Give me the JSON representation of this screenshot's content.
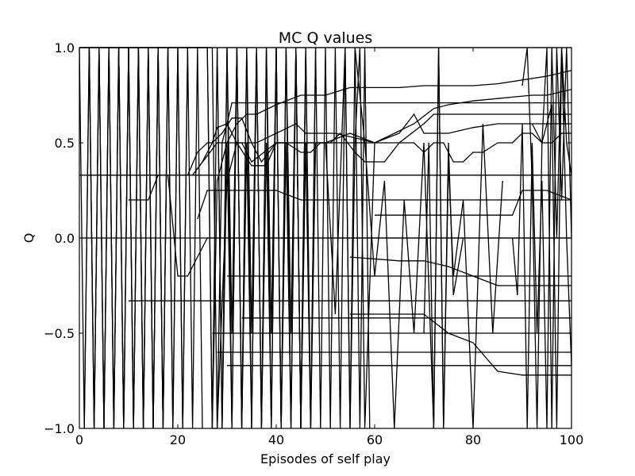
{
  "chart_data": {
    "type": "line",
    "title": "MC Q values",
    "xlabel": "Episodes of self play",
    "ylabel": "Q",
    "xlim": [
      0,
      100
    ],
    "ylim": [
      -1.0,
      1.0
    ],
    "xticks": [
      0,
      20,
      40,
      60,
      80,
      100
    ],
    "yticks": [
      -1.0,
      -0.5,
      0.0,
      0.5,
      1.0
    ],
    "xtick_labels": [
      "0",
      "20",
      "40",
      "60",
      "80",
      "100"
    ],
    "ytick_labels": [
      "−1.0",
      "−0.5",
      "0.0",
      "0.5",
      "1.0"
    ],
    "grid": false,
    "legend": "none",
    "line_color": "#000000",
    "series": [
      {
        "x": [
          0,
          26,
          27,
          28,
          29,
          30,
          31,
          33,
          60,
          100
        ],
        "values": [
          1,
          1,
          -1,
          -1,
          0.5,
          0.6,
          0.71,
          0.71,
          0.71,
          0.71
        ]
      },
      {
        "x": [
          0,
          26,
          27,
          28,
          30,
          32,
          34,
          36,
          40,
          45,
          50,
          55,
          60,
          65,
          70,
          75,
          80,
          85,
          90,
          95,
          100
        ],
        "values": [
          1,
          1,
          -1,
          0.3,
          0.5,
          0.6,
          0.65,
          0.65,
          0.7,
          0.75,
          0.75,
          0.79,
          0.79,
          0.79,
          0.8,
          0.8,
          0.8,
          0.81,
          0.83,
          0.85,
          0.88
        ]
      },
      {
        "x": [
          0,
          27,
          28,
          30,
          32,
          34,
          36,
          44,
          46,
          52,
          57,
          60,
          68,
          72,
          75,
          80,
          88,
          92,
          95,
          100
        ],
        "values": [
          1,
          1,
          -1,
          0.3,
          0.5,
          0.5,
          0.5,
          0.6,
          0.55,
          0.55,
          0.52,
          0.5,
          0.6,
          0.68,
          0.7,
          0.72,
          0.74,
          0.75,
          0.75,
          0.78
        ]
      },
      {
        "x": [
          14,
          15,
          17,
          18,
          19,
          20,
          21,
          23,
          28,
          33,
          35,
          40,
          45,
          50,
          55,
          60,
          65,
          70,
          72,
          73,
          100
        ],
        "values": [
          0.33,
          0.33,
          0.33,
          0.33,
          0.33,
          0.33,
          0.33,
          0.33,
          0.5,
          0.5,
          0.4,
          0.5,
          0.5,
          0.5,
          0.5,
          0.5,
          0.5,
          0.6,
          0.65,
          0.65,
          0.65
        ]
      },
      {
        "x": [
          23,
          25,
          27,
          29,
          31,
          33,
          35,
          37,
          40,
          45,
          50,
          55,
          60,
          65,
          68,
          70,
          75,
          80,
          85,
          90,
          95,
          100
        ],
        "values": [
          0.33,
          0.4,
          0.5,
          0.55,
          0.63,
          0.63,
          0.5,
          0.4,
          0.5,
          0.5,
          0.5,
          0.55,
          0.5,
          0.55,
          0.65,
          0.55,
          0.55,
          0.58,
          0.6,
          0.6,
          0.6,
          0.6
        ]
      },
      {
        "x": [
          22,
          24,
          26,
          27,
          28,
          30,
          32,
          35,
          38,
          40,
          42,
          45,
          47,
          49,
          51,
          53,
          56,
          58,
          60,
          62,
          65,
          68,
          70,
          72,
          74,
          76,
          78,
          80,
          82,
          85,
          88,
          90,
          92,
          94,
          96,
          98,
          100
        ],
        "values": [
          0.33,
          0.45,
          0.5,
          0.5,
          0.58,
          0.6,
          0.5,
          0.38,
          0.38,
          0.5,
          0.5,
          0.45,
          0.45,
          0.5,
          0.5,
          0.55,
          0.45,
          0.4,
          0.4,
          0.4,
          0.5,
          0.5,
          0.45,
          0.5,
          0.5,
          0.4,
          0.4,
          0.45,
          0.45,
          0.5,
          0.5,
          0.55,
          0.55,
          0.5,
          0.5,
          0.55,
          0.55
        ]
      },
      {
        "x": [
          24,
          26,
          28,
          30,
          40,
          45,
          50,
          55,
          60,
          65,
          70,
          75,
          80,
          85,
          90,
          95,
          100
        ],
        "values": [
          0.1,
          0.25,
          0.25,
          0.25,
          0.25,
          0.2,
          0.2,
          0.2,
          0.2,
          0.2,
          0.2,
          0.2,
          0.2,
          0.2,
          0.2,
          0.2,
          0.2
        ]
      },
      {
        "x": [
          10,
          12,
          14,
          16,
          18,
          20,
          22,
          24,
          26,
          30,
          35,
          40,
          45,
          50,
          55,
          60,
          65,
          70,
          75,
          80,
          85,
          90,
          95,
          100
        ],
        "values": [
          0.2,
          0.2,
          0.2,
          0.33,
          0.33,
          -0.2,
          -0.2,
          -0.1,
          0.0,
          0.0,
          0.0,
          0.0,
          0.0,
          0.0,
          0.0,
          0.0,
          0.0,
          0.0,
          0.0,
          0.0,
          0.0,
          0.0,
          0.0,
          0.0
        ]
      },
      {
        "x": [
          0,
          100
        ],
        "values": [
          0.0,
          0.0
        ]
      },
      {
        "x": [
          0,
          100
        ],
        "values": [
          0.33,
          0.33
        ]
      },
      {
        "x": [
          0,
          100
        ],
        "values": [
          1,
          1
        ]
      },
      {
        "x": [
          10,
          100
        ],
        "values": [
          -0.33,
          -0.33
        ]
      },
      {
        "x": [
          27,
          100
        ],
        "values": [
          -0.5,
          -0.5
        ]
      },
      {
        "x": [
          28,
          100
        ],
        "values": [
          -0.6,
          -0.6
        ]
      },
      {
        "x": [
          30,
          100
        ],
        "values": [
          -0.2,
          -0.2
        ]
      },
      {
        "x": [
          33,
          100
        ],
        "values": [
          -0.42,
          -0.42
        ]
      },
      {
        "x": [
          30,
          100
        ],
        "values": [
          -0.67,
          -0.67
        ]
      },
      {
        "x": [
          55,
          65,
          70,
          75,
          80,
          85,
          90,
          95,
          100
        ],
        "values": [
          -0.1,
          -0.12,
          -0.12,
          -0.15,
          -0.2,
          -0.25,
          -0.25,
          -0.25,
          -0.25
        ]
      },
      {
        "x": [
          55,
          60,
          65,
          70,
          75,
          80,
          85,
          90,
          95,
          100
        ],
        "values": [
          -0.4,
          -0.4,
          -0.4,
          -0.4,
          -0.5,
          -0.55,
          -0.7,
          -0.72,
          -0.72,
          -0.72
        ]
      },
      {
        "x": [
          60,
          65,
          70,
          80,
          88,
          90,
          95,
          100
        ],
        "values": [
          0.12,
          0.12,
          0.12,
          0.12,
          0.12,
          0.25,
          0.25,
          0.2
        ]
      },
      {
        "x": [
          0,
          1,
          2,
          3,
          4,
          5,
          6,
          7,
          8,
          9,
          10,
          11,
          12,
          13,
          14,
          15,
          16,
          17,
          18,
          19,
          20,
          21,
          22,
          23,
          24,
          25
        ],
        "values": [
          1,
          -1,
          1,
          -1,
          1,
          -1,
          1,
          -1,
          1,
          -1,
          1,
          -1,
          1,
          -1,
          1,
          -1,
          1,
          -1,
          1,
          -1,
          1,
          -1,
          1,
          -1,
          1,
          -1
        ]
      },
      {
        "x": [
          1,
          2,
          3,
          4,
          5,
          6,
          7,
          8,
          9,
          10,
          11,
          12,
          13,
          14,
          15,
          16,
          17,
          18,
          19,
          20,
          21,
          22
        ],
        "values": [
          -1,
          1,
          -1,
          1,
          -1,
          1,
          -1,
          1,
          -1,
          1,
          -1,
          1,
          -1,
          1,
          -1,
          1,
          -1,
          1,
          -1,
          1,
          -1,
          1
        ]
      },
      {
        "x": [
          2,
          3,
          4,
          5,
          6,
          7,
          8,
          9,
          10,
          11,
          12,
          13,
          14,
          15,
          16,
          17,
          18
        ],
        "values": [
          1,
          -1,
          1,
          -1,
          1,
          -1,
          1,
          -1,
          1,
          -1,
          1,
          -1,
          1,
          -1,
          1,
          -1,
          1
        ]
      },
      {
        "x": [
          27,
          28,
          29,
          30,
          31,
          32,
          33,
          34,
          35,
          36,
          37,
          38,
          39,
          40,
          41,
          42,
          43,
          44,
          45,
          46,
          47,
          48,
          49,
          50,
          51,
          52,
          53,
          54,
          55,
          56,
          57,
          58,
          59
        ],
        "values": [
          -1,
          1,
          -1,
          1,
          -1,
          1,
          -1,
          1,
          -1,
          1,
          -1,
          1,
          -1,
          1,
          -1,
          1,
          -1,
          1,
          -1,
          1,
          -1,
          1,
          -1,
          1,
          -1,
          1,
          -1,
          1,
          -1,
          1,
          -1,
          1,
          -1
        ]
      },
      {
        "x": [
          28,
          29,
          30,
          31,
          32,
          33,
          34,
          35,
          36,
          37,
          38,
          39,
          40,
          41,
          42,
          43,
          44,
          45,
          46,
          47,
          48
        ],
        "values": [
          1,
          -1,
          0.5,
          -1,
          1,
          -1,
          0.5,
          -1,
          1,
          -1,
          0.5,
          -1,
          1,
          -1,
          0.5,
          -1,
          1,
          -1,
          0.5,
          -1,
          1
        ]
      },
      {
        "x": [
          29,
          30,
          31,
          32,
          33,
          34,
          35,
          36,
          37,
          38,
          39,
          40,
          41,
          42,
          43,
          44,
          45,
          46
        ],
        "values": [
          -1,
          1,
          -0.5,
          1,
          -1,
          1,
          -0.5,
          1,
          -1,
          1,
          -0.5,
          1,
          -1,
          1,
          -0.5,
          1,
          -1,
          1
        ]
      },
      {
        "x": [
          44,
          45,
          46,
          47,
          48,
          50,
          52,
          54,
          55,
          56,
          57,
          58,
          60
        ],
        "values": [
          1,
          -1,
          1,
          -1,
          0.5,
          0.5,
          -0.4,
          1,
          -1,
          0.5,
          1,
          -1,
          0.5
        ]
      },
      {
        "x": [
          56,
          58,
          60,
          62,
          64,
          66,
          68,
          70,
          72,
          73,
          74,
          75,
          76,
          78
        ],
        "values": [
          1,
          0.5,
          -0.2,
          0.3,
          -1,
          0.2,
          -0.5,
          0.5,
          -1,
          1,
          -1,
          0.5,
          -0.3,
          0.0
        ]
      },
      {
        "x": [
          70,
          71,
          72,
          73,
          74,
          75,
          76,
          78,
          80,
          82,
          84,
          86
        ],
        "values": [
          -0.5,
          0.5,
          -1,
          1,
          -1,
          0.4,
          -0.2,
          0.2,
          -1,
          0.6,
          -0.5,
          0.3
        ]
      },
      {
        "x": [
          90,
          91,
          92,
          93,
          94,
          95,
          96,
          97,
          98,
          99,
          100
        ],
        "values": [
          0.8,
          1,
          0.3,
          -1,
          0.5,
          1,
          -1,
          1,
          0.2,
          1,
          0.0
        ]
      },
      {
        "x": [
          88,
          89,
          90,
          91,
          92,
          93,
          94,
          95,
          96,
          97,
          98,
          99,
          100
        ],
        "values": [
          0.0,
          -0.3,
          0.6,
          -1,
          0.5,
          -0.5,
          0.3,
          -1,
          1,
          0.0,
          1,
          0.5,
          0.33
        ]
      },
      {
        "x": [
          92,
          94,
          96,
          97,
          98,
          99,
          100
        ],
        "values": [
          0.6,
          0.5,
          0.7,
          -1,
          1,
          0.0,
          -0.67
        ]
      }
    ]
  }
}
